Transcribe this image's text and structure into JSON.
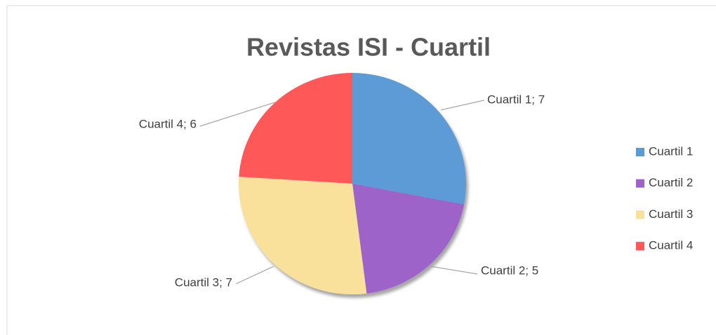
{
  "chart_data": {
    "type": "pie",
    "title": "Revistas ISI - Cuartil",
    "categories": [
      "Cuartil 1",
      "Cuartil 2",
      "Cuartil 3",
      "Cuartil 4"
    ],
    "values": [
      7,
      5,
      7,
      6
    ],
    "value_labels": [
      "Cuartil 1; 7",
      "Cuartil 2; 5",
      "Cuartil 3; 7",
      "Cuartil 4; 6"
    ],
    "colors": [
      "#5b9bd5",
      "#9e63c9",
      "#f9e09b",
      "#ff5858"
    ],
    "legend": "right"
  }
}
